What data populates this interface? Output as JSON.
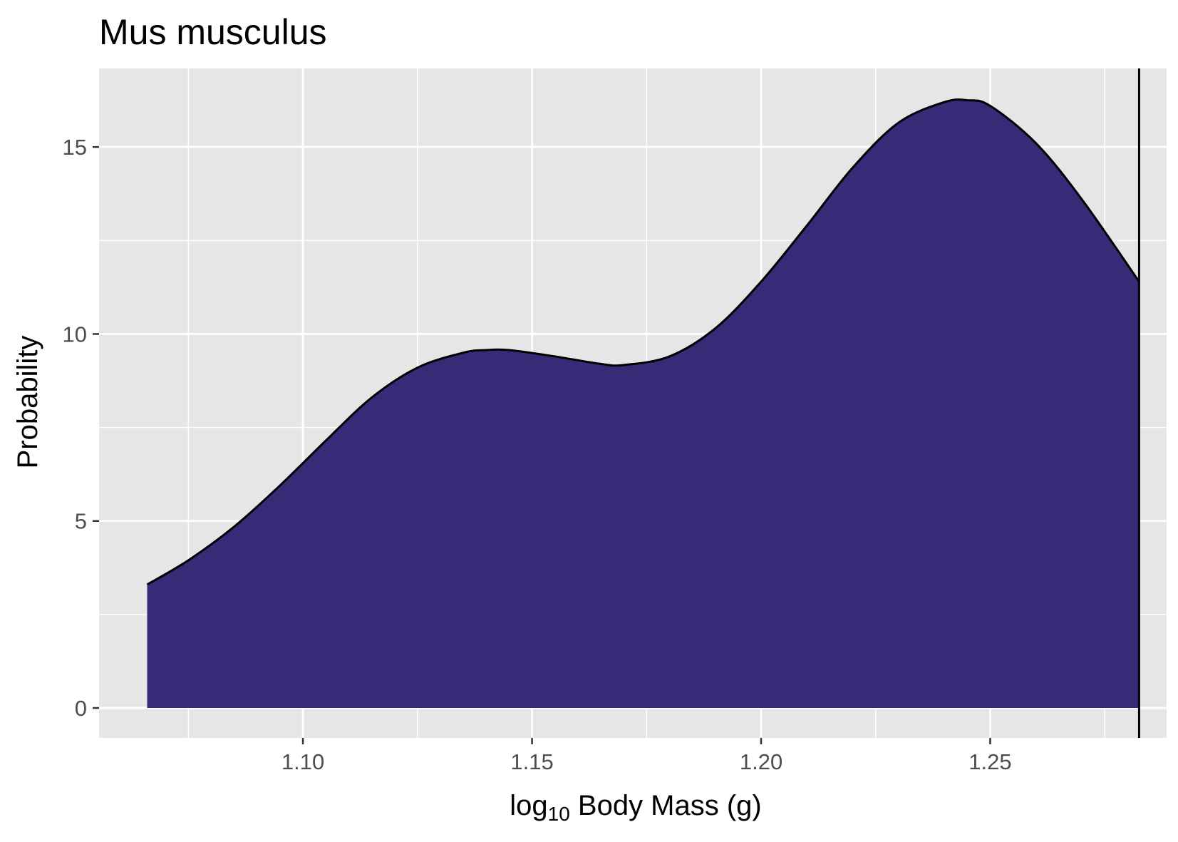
{
  "chart_data": {
    "type": "area",
    "title": "Mus musculus",
    "xlabel": {
      "prefix": "log",
      "subscript": "10",
      "suffix": " Body Mass (g)"
    },
    "ylabel": "Probability",
    "xlim": [
      1.0555,
      1.2885
    ],
    "ylim": [
      -0.8,
      17.1
    ],
    "x_ticks": [
      1.1,
      1.15,
      1.2,
      1.25
    ],
    "x_tick_labels": [
      "1.10",
      "1.15",
      "1.20",
      "1.25"
    ],
    "y_ticks": [
      0,
      5,
      10,
      15
    ],
    "y_tick_labels": [
      "0",
      "5",
      "10",
      "15"
    ],
    "grid": true,
    "legend": "none",
    "fill_color": "#372A77",
    "line_color": "#000000",
    "panel_color": "#E6E6E6",
    "reference_line_x": 1.2825,
    "density": {
      "x": [
        1.066,
        1.075,
        1.085,
        1.095,
        1.105,
        1.115,
        1.125,
        1.135,
        1.14,
        1.145,
        1.155,
        1.165,
        1.17,
        1.18,
        1.19,
        1.2,
        1.21,
        1.22,
        1.23,
        1.24,
        1.245,
        1.25,
        1.26,
        1.27,
        1.2825
      ],
      "y": [
        3.3,
        3.95,
        4.85,
        5.95,
        7.15,
        8.3,
        9.1,
        9.5,
        9.57,
        9.57,
        9.4,
        9.2,
        9.17,
        9.4,
        10.15,
        11.4,
        12.9,
        14.45,
        15.65,
        16.2,
        16.25,
        16.1,
        15.1,
        13.6,
        11.4
      ]
    }
  }
}
